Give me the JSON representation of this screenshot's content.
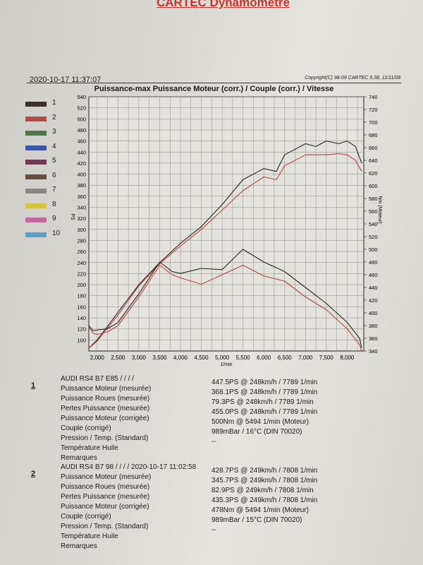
{
  "header": {
    "brand": "CARTEC Dynamomètre",
    "date": "2020-10-17 11:37:07",
    "copyright": "Copyright(C) 98-09 CARTEC 5.38, 11/11/09"
  },
  "legend": [
    {
      "label": "1",
      "color": "#3b2e2a"
    },
    {
      "label": "2",
      "color": "#b54b42"
    },
    {
      "label": "3",
      "color": "#4d7a4b"
    },
    {
      "label": "4",
      "color": "#3b57a6"
    },
    {
      "label": "5",
      "color": "#6e3a57"
    },
    {
      "label": "6",
      "color": "#6b4a40"
    },
    {
      "label": "7",
      "color": "#8a8685"
    },
    {
      "label": "8",
      "color": "#d6c441"
    },
    {
      "label": "9",
      "color": "#c16a9e"
    },
    {
      "label": "10",
      "color": "#5aa0c8"
    }
  ],
  "chart_data": {
    "type": "line",
    "title": "Puissance-max Puissance Moteur (corr.) / Couple (corr.) / Vitesse",
    "xlabel": "1/min",
    "ylabel": "PS",
    "y2label": "Nm (Moteur)",
    "xlim": [
      1800,
      8400
    ],
    "ylim": [
      80,
      540
    ],
    "y2lim": [
      340,
      740
    ],
    "xticks": [
      "2,000",
      "2,500",
      "3,000",
      "3,500",
      "4,000",
      "4,500",
      "5,000",
      "5,500",
      "6,000",
      "6,500",
      "7,000",
      "7,500",
      "8,000"
    ],
    "xtick_values": [
      2000,
      2500,
      3000,
      3500,
      4000,
      4500,
      5000,
      5500,
      6000,
      6500,
      7000,
      7500,
      8000
    ],
    "yticks": [
      "100",
      "120",
      "140",
      "160",
      "180",
      "200",
      "220",
      "240",
      "260",
      "280",
      "300",
      "320",
      "340",
      "360",
      "380",
      "400",
      "420",
      "440",
      "460",
      "480",
      "500",
      "520",
      "540"
    ],
    "ytick_values": [
      100,
      120,
      140,
      160,
      180,
      200,
      220,
      240,
      260,
      280,
      300,
      320,
      340,
      360,
      380,
      400,
      420,
      440,
      460,
      480,
      500,
      520,
      540
    ],
    "y2ticks": [
      "340",
      "360",
      "380",
      "400",
      "420",
      "440",
      "460",
      "480",
      "500",
      "520",
      "540",
      "560",
      "580",
      "600",
      "620",
      "640",
      "660",
      "680",
      "700",
      "720",
      "740"
    ],
    "y2tick_values": [
      340,
      360,
      380,
      400,
      420,
      440,
      460,
      480,
      500,
      520,
      540,
      560,
      580,
      600,
      620,
      640,
      660,
      680,
      700,
      720,
      740
    ],
    "grid": true,
    "series": [
      {
        "name": "1",
        "axis": "left",
        "color": "#2a2220",
        "x": [
          1800,
          2000,
          2500,
          3000,
          3500,
          4000,
          4500,
          5000,
          5500,
          6000,
          6300,
          6500,
          7000,
          7250,
          7500,
          7800,
          8000,
          8200,
          8350
        ],
        "y": [
          85,
          100,
          150,
          200,
          240,
          275,
          305,
          345,
          390,
          410,
          405,
          435,
          455,
          450,
          460,
          455,
          460,
          450,
          420
        ]
      },
      {
        "name": "2",
        "axis": "left",
        "color": "#b5433c",
        "x": [
          1800,
          2000,
          2500,
          3000,
          3500,
          4000,
          4500,
          5000,
          5500,
          6000,
          6300,
          6500,
          7000,
          7250,
          7500,
          7800,
          8000,
          8200,
          8350
        ],
        "y": [
          85,
          98,
          145,
          198,
          238,
          270,
          300,
          335,
          370,
          395,
          390,
          415,
          435,
          435,
          435,
          437,
          435,
          425,
          405
        ]
      },
      {
        "name": "1",
        "axis": "right",
        "color": "#2a2220",
        "x": [
          1800,
          1900,
          2000,
          2250,
          2500,
          3000,
          3500,
          3800,
          4000,
          4500,
          5000,
          5500,
          6000,
          6500,
          7000,
          7500,
          8000,
          8300,
          8350
        ],
        "y": [
          380,
          372,
          373,
          375,
          385,
          430,
          480,
          465,
          462,
          470,
          468,
          500,
          480,
          465,
          440,
          415,
          385,
          360,
          345
        ]
      },
      {
        "name": "2",
        "axis": "right",
        "color": "#b5433c",
        "x": [
          1800,
          1900,
          2000,
          2250,
          2500,
          3000,
          3500,
          3800,
          4000,
          4500,
          5000,
          5500,
          6000,
          6500,
          7000,
          7500,
          8000,
          8300,
          8350
        ],
        "y": [
          378,
          368,
          366,
          370,
          380,
          425,
          475,
          460,
          455,
          445,
          460,
          475,
          458,
          450,
          425,
          405,
          375,
          350,
          340
        ]
      }
    ]
  },
  "results": [
    {
      "number": "1",
      "labels": [
        "AUDI RS4 B7 E85 /  /  /  /",
        "Puissance Moteur (mesurée)",
        "Puissance Roues (mesurée)",
        "Pertes Puissance (mesurée)",
        "Puissance Moteur (corrigée)",
        "Couple (corrigé)",
        "Pression / Temp. (Standard)",
        "Température Huile",
        "Remarques"
      ],
      "values": [
        "447.5PS @ 248km/h / 7789 1/min",
        "368.1PS @ 248km/h / 7789 1/min",
        "79.3PS @ 248km/h / 7789 1/min",
        "455.0PS @ 248km/h / 7789 1/min",
        "500Nm @ 5494 1/min (Moteur)",
        "989mBar / 16°C   (DIN 70020)",
        "--"
      ]
    },
    {
      "number": "2",
      "labels": [
        "AUDI RS4 B7 98 /  /  /  / 2020-10-17 11:02:58",
        "Puissance Moteur (mesurée)",
        "Puissance Roues (mesurée)",
        "Pertes Puissance (mesurée)",
        "Puissance Moteur (corrigée)",
        "Couple (corrigé)",
        "Pression / Temp. (Standard)",
        "Température Huile",
        "Remarques"
      ],
      "values": [
        "428.7PS @ 249km/h / 7808 1/min",
        "345.7PS @ 249km/h / 7808 1/min",
        "82.9PS @ 249km/h / 7808 1/min",
        "435.3PS @ 249km/h / 7808 1/min",
        "478Nm @ 5494 1/min (Moteur)",
        "989mBar / 15°C   (DIN 70020)",
        "--"
      ]
    }
  ]
}
